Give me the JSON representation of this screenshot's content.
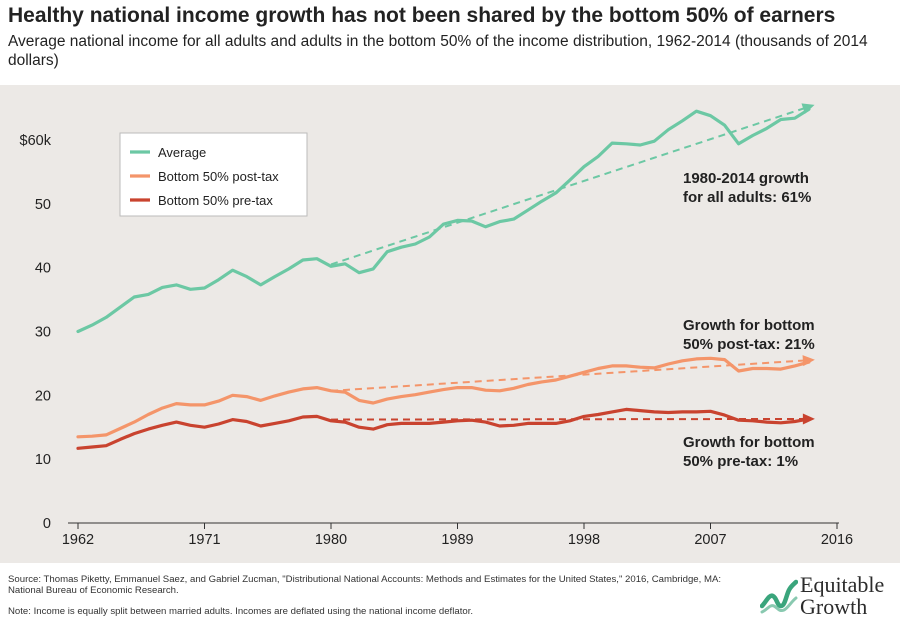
{
  "header": {
    "title": "Healthy national income growth has not been shared by the bottom 50% of earners",
    "subtitle": "Average national income for all adults and adults in the bottom 50% of the income distribution, 1962-2014 (thousands of 2014 dollars)"
  },
  "footer": {
    "source": "Source: Thomas Piketty, Emmanuel Saez, and Gabriel Zucman, \"Distributional National Accounts: Methods and Estimates for the United States,\" 2016, Cambridge, MA: National Bureau of Economic Research.",
    "note": "Note: Income is equally split between married adults. Incomes are deflated using the national income deflator.",
    "logo_line1": "Equitable",
    "logo_line2": "Growth"
  },
  "colors": {
    "average": "#6cc8a4",
    "post_tax": "#f4956a",
    "pre_tax": "#c9432f",
    "logo_green": "#3aa57c"
  },
  "chart_data": {
    "type": "line",
    "xlim": [
      1962,
      2016
    ],
    "ylim": [
      0,
      65
    ],
    "x_ticks": [
      1962,
      1971,
      1980,
      1989,
      1998,
      2007,
      2016
    ],
    "y_ticks": [
      {
        "value": 0,
        "label": "0"
      },
      {
        "value": 10,
        "label": "10"
      },
      {
        "value": 20,
        "label": "20"
      },
      {
        "value": 30,
        "label": "30"
      },
      {
        "value": 40,
        "label": "40"
      },
      {
        "value": 50,
        "label": "50"
      },
      {
        "value": 60,
        "label": "$60k"
      }
    ],
    "grid": false,
    "legend_position": "top-left",
    "x": [
      1962,
      1963,
      1964,
      1965,
      1966,
      1967,
      1968,
      1969,
      1970,
      1971,
      1972,
      1973,
      1974,
      1975,
      1976,
      1977,
      1978,
      1979,
      1980,
      1981,
      1982,
      1983,
      1984,
      1985,
      1986,
      1987,
      1988,
      1989,
      1990,
      1991,
      1992,
      1993,
      1994,
      1995,
      1996,
      1997,
      1998,
      1999,
      2000,
      2001,
      2002,
      2003,
      2004,
      2005,
      2006,
      2007,
      2008,
      2009,
      2010,
      2011,
      2012,
      2013,
      2014
    ],
    "series": [
      {
        "name": "Average",
        "color_key": "average",
        "values": [
          30.0,
          31.0,
          32.2,
          33.8,
          35.4,
          35.8,
          36.9,
          37.3,
          36.6,
          36.8,
          38.1,
          39.6,
          38.6,
          37.3,
          38.6,
          39.8,
          41.2,
          41.4,
          40.2,
          40.6,
          39.2,
          39.8,
          42.5,
          43.2,
          43.7,
          44.8,
          46.8,
          47.4,
          47.3,
          46.4,
          47.2,
          47.6,
          49.0,
          50.4,
          51.7,
          53.7,
          55.8,
          57.4,
          59.5,
          59.4,
          59.2,
          59.8,
          61.6,
          63.0,
          64.5,
          63.8,
          62.3,
          59.4,
          60.7,
          61.8,
          63.2,
          63.4,
          64.8
        ]
      },
      {
        "name": "Bottom 50% post-tax",
        "color_key": "post_tax",
        "values": [
          13.5,
          13.6,
          13.8,
          14.8,
          15.8,
          17.0,
          18.0,
          18.7,
          18.5,
          18.5,
          19.1,
          20.0,
          19.8,
          19.2,
          19.9,
          20.5,
          21.0,
          21.2,
          20.7,
          20.5,
          19.2,
          18.8,
          19.4,
          19.8,
          20.1,
          20.5,
          20.9,
          21.2,
          21.2,
          20.8,
          20.7,
          21.1,
          21.7,
          22.1,
          22.4,
          23.0,
          23.6,
          24.2,
          24.6,
          24.6,
          24.4,
          24.3,
          24.9,
          25.4,
          25.7,
          25.8,
          25.6,
          23.8,
          24.2,
          24.2,
          24.1,
          24.6,
          25.2
        ]
      },
      {
        "name": "Bottom 50% pre-tax",
        "color_key": "pre_tax",
        "values": [
          11.7,
          11.9,
          12.1,
          13.1,
          14.0,
          14.7,
          15.3,
          15.8,
          15.3,
          15.0,
          15.5,
          16.2,
          15.9,
          15.2,
          15.6,
          16.0,
          16.6,
          16.7,
          16.0,
          15.8,
          15.0,
          14.7,
          15.4,
          15.6,
          15.6,
          15.6,
          15.8,
          16.0,
          16.1,
          15.8,
          15.2,
          15.3,
          15.6,
          15.6,
          15.6,
          16.0,
          16.7,
          17.0,
          17.4,
          17.8,
          17.6,
          17.4,
          17.3,
          17.4,
          17.4,
          17.5,
          16.9,
          16.1,
          16.0,
          15.8,
          15.7,
          15.9,
          16.3
        ]
      }
    ],
    "trend_lines": [
      {
        "series": "Average",
        "x": [
          1980,
          2014
        ],
        "y": [
          40.5,
          65.2
        ]
      },
      {
        "series": "Bottom 50% post-tax",
        "x": [
          1980,
          2014
        ],
        "y": [
          20.7,
          25.5
        ]
      },
      {
        "series": "Bottom 50% pre-tax",
        "x": [
          1980,
          2014
        ],
        "y": [
          16.2,
          16.3
        ]
      }
    ],
    "annotations": [
      {
        "color_key": "average",
        "lines": [
          "1980-2014 growth",
          "for all adults: 61%"
        ]
      },
      {
        "color_key": "post_tax",
        "lines": [
          "Growth for bottom",
          "50% post-tax: 21%"
        ]
      },
      {
        "color_key": "pre_tax",
        "lines": [
          "Growth for bottom",
          "50% pre-tax: 1%"
        ]
      }
    ]
  }
}
